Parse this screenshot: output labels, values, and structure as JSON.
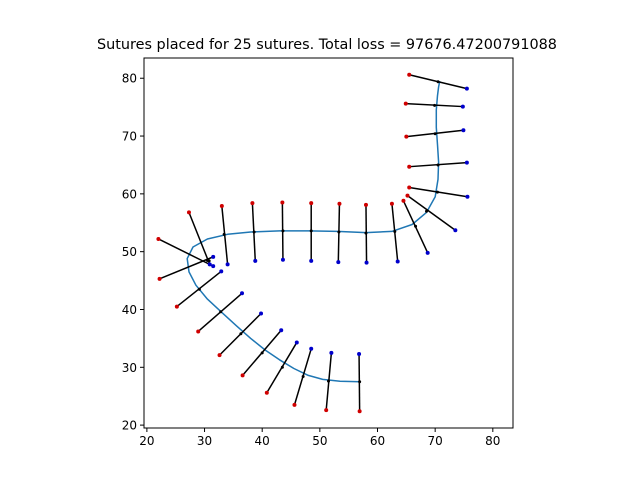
{
  "chart_data": {
    "type": "scatter",
    "title": "Sutures placed for 25 sutures. Total loss = 97676.47200791088",
    "xlabel": "",
    "ylabel": "",
    "xlim": [
      19.5,
      83.5
    ],
    "ylim": [
      19.5,
      83.5
    ],
    "xticks": [
      20,
      30,
      40,
      50,
      60,
      70,
      80
    ],
    "yticks": [
      20,
      30,
      40,
      50,
      60,
      70,
      80
    ],
    "grid": false,
    "colors": {
      "curve": "#1f77b4",
      "suture_line": "#000000",
      "insertion_point": "#d00000",
      "extraction_point": "#0000cc",
      "center_point": "#000000"
    },
    "wound_curve": [
      [
        57.0,
        27.5
      ],
      [
        53.5,
        27.6
      ],
      [
        50.5,
        27.9
      ],
      [
        48.0,
        28.6
      ],
      [
        45.5,
        29.8
      ],
      [
        43.0,
        31.3
      ],
      [
        40.5,
        33.0
      ],
      [
        38.0,
        35.0
      ],
      [
        35.5,
        37.2
      ],
      [
        33.0,
        39.5
      ],
      [
        30.5,
        41.8
      ],
      [
        28.5,
        44.2
      ],
      [
        27.3,
        46.5
      ],
      [
        27.0,
        48.8
      ],
      [
        28.0,
        50.8
      ],
      [
        30.5,
        52.2
      ],
      [
        34.0,
        53.0
      ],
      [
        38.0,
        53.4
      ],
      [
        43.0,
        53.6
      ],
      [
        48.0,
        53.6
      ],
      [
        53.0,
        53.5
      ],
      [
        58.0,
        53.3
      ],
      [
        62.5,
        53.5
      ],
      [
        66.0,
        54.7
      ],
      [
        68.5,
        56.8
      ],
      [
        70.0,
        59.5
      ],
      [
        70.5,
        62.5
      ],
      [
        70.6,
        65.5
      ],
      [
        70.4,
        68.5
      ],
      [
        70.2,
        71.5
      ],
      [
        70.2,
        74.5
      ],
      [
        70.4,
        77.0
      ],
      [
        70.6,
        78.5
      ],
      [
        70.8,
        79.5
      ]
    ],
    "sutures": [
      {
        "insert": [
          22.0,
          52.2
        ],
        "extract": [
          31.5,
          47.5
        ],
        "center": [
          30.5,
          48.5
        ]
      },
      {
        "insert": [
          22.2,
          45.3
        ],
        "extract": [
          31.5,
          49.1
        ],
        "center": [
          30.8,
          48.4
        ]
      },
      {
        "insert": [
          27.3,
          56.8
        ],
        "extract": [
          30.9,
          47.8
        ],
        "center": [
          30.5,
          48.5
        ]
      },
      {
        "insert": [
          25.2,
          40.5
        ],
        "extract": [
          32.9,
          46.6
        ],
        "center": [
          29.1,
          43.5
        ]
      },
      {
        "insert": [
          28.9,
          36.2
        ],
        "extract": [
          36.5,
          42.8
        ],
        "center": [
          32.8,
          39.6
        ]
      },
      {
        "insert": [
          32.6,
          32.1
        ],
        "extract": [
          39.8,
          39.3
        ],
        "center": [
          36.3,
          35.8
        ]
      },
      {
        "insert": [
          36.6,
          28.6
        ],
        "extract": [
          43.3,
          36.4
        ],
        "center": [
          40.0,
          32.5
        ]
      },
      {
        "insert": [
          40.8,
          25.6
        ],
        "extract": [
          46.0,
          34.3
        ],
        "center": [
          43.5,
          30.0
        ]
      },
      {
        "insert": [
          45.6,
          23.5
        ],
        "extract": [
          48.5,
          33.2
        ],
        "center": [
          47.1,
          28.4
        ]
      },
      {
        "insert": [
          51.1,
          22.6
        ],
        "extract": [
          52.0,
          32.5
        ],
        "center": [
          51.5,
          27.6
        ]
      },
      {
        "insert": [
          56.9,
          22.4
        ],
        "extract": [
          56.8,
          32.3
        ],
        "center": [
          56.9,
          27.5
        ]
      },
      {
        "insert": [
          33.0,
          57.9
        ],
        "extract": [
          34.0,
          47.8
        ],
        "center": [
          33.4,
          53.0
        ]
      },
      {
        "insert": [
          38.3,
          58.4
        ],
        "extract": [
          38.8,
          48.4
        ],
        "center": [
          38.6,
          53.4
        ]
      },
      {
        "insert": [
          43.5,
          58.5
        ],
        "extract": [
          43.6,
          48.6
        ],
        "center": [
          43.6,
          53.6
        ]
      },
      {
        "insert": [
          48.5,
          58.4
        ],
        "extract": [
          48.5,
          48.4
        ],
        "center": [
          48.5,
          53.6
        ]
      },
      {
        "insert": [
          53.4,
          58.3
        ],
        "extract": [
          53.2,
          48.2
        ],
        "center": [
          53.3,
          53.4
        ]
      },
      {
        "insert": [
          58.0,
          58.1
        ],
        "extract": [
          58.1,
          48.1
        ],
        "center": [
          58.0,
          53.2
        ]
      },
      {
        "insert": [
          62.5,
          58.3
        ],
        "extract": [
          63.5,
          48.3
        ],
        "center": [
          63.0,
          53.5
        ]
      },
      {
        "insert": [
          64.5,
          58.8
        ],
        "extract": [
          68.7,
          49.8
        ],
        "center": [
          66.6,
          54.4
        ]
      },
      {
        "insert": [
          65.2,
          59.7
        ],
        "extract": [
          73.5,
          53.7
        ],
        "center": [
          68.5,
          57.0
        ]
      },
      {
        "insert": [
          65.5,
          61.1
        ],
        "extract": [
          75.6,
          59.5
        ],
        "center": [
          70.4,
          60.3
        ]
      },
      {
        "insert": [
          65.5,
          64.7
        ],
        "extract": [
          75.5,
          65.4
        ],
        "center": [
          70.5,
          65.0
        ]
      },
      {
        "insert": [
          65.0,
          69.9
        ],
        "extract": [
          74.9,
          71.0
        ],
        "center": [
          70.0,
          70.4
        ]
      },
      {
        "insert": [
          64.9,
          75.6
        ],
        "extract": [
          74.8,
          75.1
        ],
        "center": [
          69.9,
          75.3
        ]
      },
      {
        "insert": [
          65.5,
          80.6
        ],
        "extract": [
          75.5,
          78.2
        ],
        "center": [
          70.5,
          79.4
        ]
      }
    ]
  }
}
